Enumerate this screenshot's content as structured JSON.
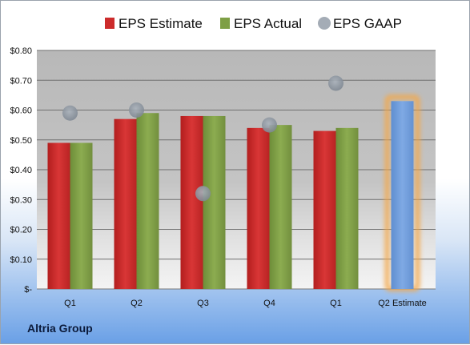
{
  "chart_data": {
    "type": "bar",
    "categories": [
      "Q1",
      "Q2",
      "Q3",
      "Q4",
      "Q1",
      "Q2 Estimate"
    ],
    "series": [
      {
        "name": "EPS Estimate",
        "color": "#cc2b2b",
        "values": [
          0.49,
          0.57,
          0.58,
          0.54,
          0.53,
          null
        ]
      },
      {
        "name": "EPS Actual",
        "color": "#7e9f45",
        "values": [
          0.49,
          0.59,
          0.58,
          0.55,
          0.54,
          null
        ]
      },
      {
        "name": "EPS GAAP",
        "color": "#9aa6b2",
        "values": [
          0.59,
          0.6,
          0.32,
          0.55,
          0.69,
          null
        ]
      }
    ],
    "highlight": {
      "category_index": 5,
      "value": 0.63,
      "color": "#6f9fdc",
      "glow_color": "#f4a84a"
    },
    "y_ticks": [
      {
        "value": 0,
        "label": "$-"
      },
      {
        "value": 0.1,
        "label": "$0.10"
      },
      {
        "value": 0.2,
        "label": "$0.20"
      },
      {
        "value": 0.3,
        "label": "$0.30"
      },
      {
        "value": 0.4,
        "label": "$0.40"
      },
      {
        "value": 0.5,
        "label": "$0.50"
      },
      {
        "value": 0.6,
        "label": "$0.60"
      },
      {
        "value": 0.7,
        "label": "$0.70"
      },
      {
        "value": 0.8,
        "label": "$0.80"
      }
    ],
    "ylim": [
      0,
      0.8
    ],
    "grid": true,
    "legend_position": "top"
  },
  "company": "Altria Group"
}
